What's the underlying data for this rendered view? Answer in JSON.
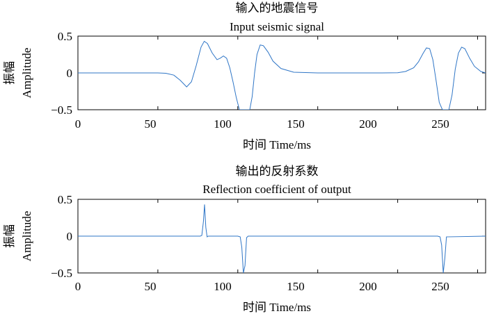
{
  "chart_data": [
    {
      "type": "line",
      "title": "输入的地震信号",
      "subtitle": "Input seismic signal",
      "xlabel": "时间 Time/ms",
      "ylabel_cn": "振幅",
      "ylabel_en": "Amplitude",
      "xlim": [
        0,
        255
      ],
      "ylim": [
        -0.5,
        0.5
      ],
      "xticks": [
        "0",
        "50",
        "100",
        "150",
        "200",
        "250"
      ],
      "yticks": [
        "0.5",
        "0",
        "−0.5"
      ],
      "grid": false,
      "line_color": "#2e75c6",
      "x": [
        0,
        50,
        55,
        60,
        64,
        68,
        71,
        74,
        77,
        79,
        81,
        84,
        87,
        89,
        91,
        93,
        95,
        97,
        99,
        101,
        102.5,
        104,
        106,
        107.5,
        109,
        110.5,
        112,
        114,
        116,
        119,
        122,
        127,
        135,
        150,
        190,
        200,
        205,
        210,
        213,
        216,
        218,
        220,
        222,
        224,
        226,
        228,
        230,
        232,
        234,
        236,
        238,
        240,
        242,
        245,
        248,
        252,
        255
      ],
      "y": [
        0,
        0,
        -0.005,
        -0.03,
        -0.1,
        -0.19,
        -0.12,
        0.1,
        0.35,
        0.43,
        0.4,
        0.27,
        0.18,
        0.2,
        0.23,
        0.2,
        0.07,
        -0.12,
        -0.33,
        -0.5,
        -0.5,
        -0.5,
        -0.5,
        -0.5,
        -0.32,
        0.0,
        0.25,
        0.38,
        0.37,
        0.28,
        0.16,
        0.06,
        0.01,
        0,
        0,
        0.002,
        0.02,
        0.07,
        0.15,
        0.27,
        0.34,
        0.33,
        0.18,
        -0.1,
        -0.4,
        -0.5,
        -0.5,
        -0.5,
        -0.3,
        0.05,
        0.27,
        0.35,
        0.33,
        0.2,
        0.09,
        0.02,
        0.0
      ]
    },
    {
      "type": "line",
      "title": "输出的反射系数",
      "subtitle": "Reflection coefficient of output",
      "xlabel": "时间 Time/ms",
      "ylabel_cn": "振幅",
      "ylabel_en": "Amplitude",
      "xlim": [
        0,
        255
      ],
      "ylim": [
        -0.5,
        0.5
      ],
      "xticks": [
        "0",
        "50",
        "100",
        "150",
        "200",
        "250"
      ],
      "yticks": [
        "0.5",
        "0",
        "−0.5"
      ],
      "grid": false,
      "line_color": "#2e75c6",
      "x": [
        0,
        76.5,
        77.5,
        78.5,
        79.2,
        80,
        80.8,
        81.5,
        100,
        101.5,
        102.5,
        103.5,
        104.5,
        105.5,
        106.5,
        225,
        226.5,
        227.5,
        228.5,
        229.5,
        230.5,
        255
      ],
      "y": [
        0,
        0,
        0.01,
        0.2,
        0.43,
        0.12,
        -0.01,
        0,
        0,
        -0.01,
        -0.15,
        -0.5,
        -0.4,
        -0.02,
        0,
        0,
        -0.01,
        -0.12,
        -0.5,
        -0.3,
        -0.01,
        0
      ]
    }
  ]
}
